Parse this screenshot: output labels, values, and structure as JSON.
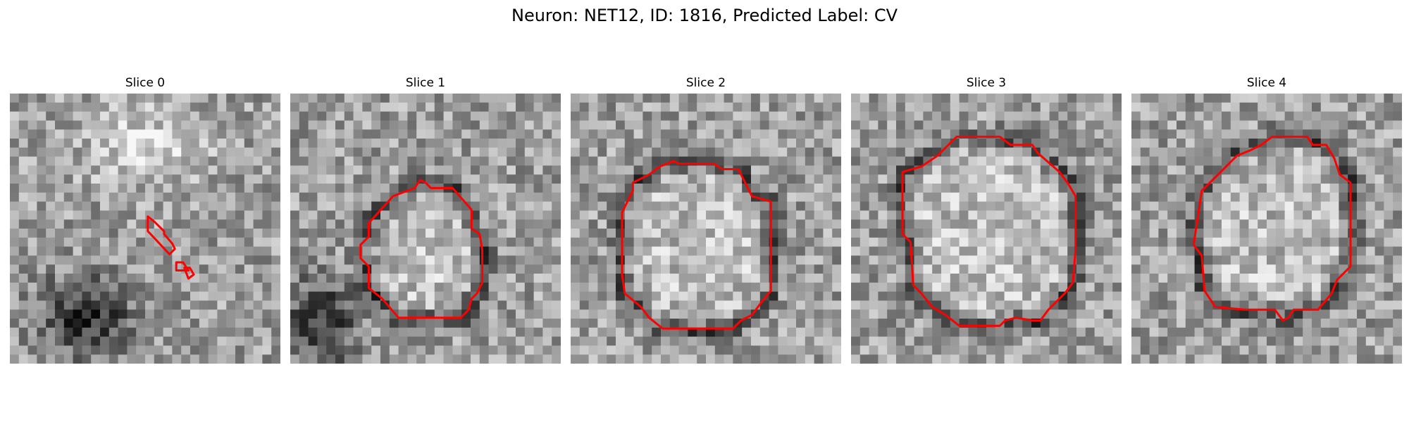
{
  "title": "Neuron: NET12, ID: 1816, Predicted Label: CV",
  "outline_color": "#ff0000",
  "panels": [
    {
      "label": "Slice 0",
      "content": "grayscale EM texture with small red contour",
      "contours": [
        [
          [
            0.51,
            0.455
          ],
          [
            0.535,
            0.475
          ],
          [
            0.57,
            0.51
          ],
          [
            0.57,
            0.52
          ],
          [
            0.6,
            0.555
          ],
          [
            0.61,
            0.575
          ],
          [
            0.59,
            0.595
          ],
          [
            0.52,
            0.52
          ],
          [
            0.51,
            0.51
          ]
        ],
        [
          [
            0.615,
            0.625
          ],
          [
            0.64,
            0.625
          ],
          [
            0.66,
            0.655
          ],
          [
            0.615,
            0.655
          ]
        ],
        [
          [
            0.645,
            0.645
          ],
          [
            0.665,
            0.645
          ],
          [
            0.68,
            0.67
          ],
          [
            0.66,
            0.685
          ]
        ]
      ]
    },
    {
      "label": "Slice 1",
      "content": "grayscale EM texture with red membrane contour",
      "contours": [
        [
          [
            0.29,
            0.48
          ],
          [
            0.38,
            0.38
          ],
          [
            0.46,
            0.35
          ],
          [
            0.48,
            0.32
          ],
          [
            0.5,
            0.33
          ],
          [
            0.52,
            0.35
          ],
          [
            0.6,
            0.35
          ],
          [
            0.67,
            0.43
          ],
          [
            0.67,
            0.5
          ],
          [
            0.7,
            0.52
          ],
          [
            0.71,
            0.58
          ],
          [
            0.71,
            0.7
          ],
          [
            0.69,
            0.74
          ],
          [
            0.67,
            0.76
          ],
          [
            0.66,
            0.8
          ],
          [
            0.63,
            0.83
          ],
          [
            0.4,
            0.83
          ],
          [
            0.34,
            0.76
          ],
          [
            0.29,
            0.72
          ],
          [
            0.29,
            0.64
          ],
          [
            0.26,
            0.61
          ],
          [
            0.26,
            0.56
          ],
          [
            0.29,
            0.53
          ]
        ]
      ]
    },
    {
      "label": "Slice 2",
      "content": "grayscale EM texture with round red contour",
      "contours": [
        [
          [
            0.23,
            0.33
          ],
          [
            0.29,
            0.3
          ],
          [
            0.33,
            0.27
          ],
          [
            0.38,
            0.25
          ],
          [
            0.4,
            0.26
          ],
          [
            0.45,
            0.26
          ],
          [
            0.53,
            0.26
          ],
          [
            0.56,
            0.28
          ],
          [
            0.62,
            0.28
          ],
          [
            0.67,
            0.38
          ],
          [
            0.74,
            0.4
          ],
          [
            0.74,
            0.73
          ],
          [
            0.7,
            0.78
          ],
          [
            0.67,
            0.82
          ],
          [
            0.63,
            0.84
          ],
          [
            0.6,
            0.87
          ],
          [
            0.34,
            0.87
          ],
          [
            0.29,
            0.83
          ],
          [
            0.26,
            0.79
          ],
          [
            0.2,
            0.74
          ],
          [
            0.19,
            0.67
          ],
          [
            0.19,
            0.44
          ],
          [
            0.21,
            0.4
          ],
          [
            0.23,
            0.36
          ]
        ]
      ]
    },
    {
      "label": "Slice 3",
      "content": "grayscale EM texture with round red contour",
      "contours": [
        [
          [
            0.19,
            0.29
          ],
          [
            0.26,
            0.27
          ],
          [
            0.32,
            0.23
          ],
          [
            0.36,
            0.19
          ],
          [
            0.39,
            0.16
          ],
          [
            0.55,
            0.16
          ],
          [
            0.59,
            0.19
          ],
          [
            0.67,
            0.19
          ],
          [
            0.69,
            0.22
          ],
          [
            0.77,
            0.29
          ],
          [
            0.8,
            0.33
          ],
          [
            0.83,
            0.38
          ],
          [
            0.83,
            0.58
          ],
          [
            0.82,
            0.7
          ],
          [
            0.79,
            0.74
          ],
          [
            0.76,
            0.77
          ],
          [
            0.73,
            0.8
          ],
          [
            0.7,
            0.84
          ],
          [
            0.67,
            0.84
          ],
          [
            0.61,
            0.83
          ],
          [
            0.57,
            0.84
          ],
          [
            0.55,
            0.86
          ],
          [
            0.48,
            0.86
          ],
          [
            0.4,
            0.86
          ],
          [
            0.35,
            0.82
          ],
          [
            0.3,
            0.79
          ],
          [
            0.26,
            0.74
          ],
          [
            0.23,
            0.71
          ],
          [
            0.22,
            0.55
          ],
          [
            0.19,
            0.52
          ]
        ]
      ]
    },
    {
      "label": "Slice 4",
      "content": "grayscale EM texture with octagonal red contour",
      "contours": [
        [
          [
            0.26,
            0.36
          ],
          [
            0.33,
            0.29
          ],
          [
            0.39,
            0.23
          ],
          [
            0.44,
            0.21
          ],
          [
            0.48,
            0.19
          ],
          [
            0.52,
            0.16
          ],
          [
            0.57,
            0.16
          ],
          [
            0.65,
            0.16
          ],
          [
            0.67,
            0.19
          ],
          [
            0.72,
            0.19
          ],
          [
            0.75,
            0.24
          ],
          [
            0.77,
            0.3
          ],
          [
            0.81,
            0.33
          ],
          [
            0.81,
            0.64
          ],
          [
            0.76,
            0.69
          ],
          [
            0.74,
            0.74
          ],
          [
            0.69,
            0.8
          ],
          [
            0.6,
            0.8
          ],
          [
            0.58,
            0.83
          ],
          [
            0.56,
            0.84
          ],
          [
            0.53,
            0.8
          ],
          [
            0.42,
            0.8
          ],
          [
            0.31,
            0.79
          ],
          [
            0.27,
            0.73
          ],
          [
            0.26,
            0.6
          ],
          [
            0.23,
            0.56
          ]
        ]
      ]
    }
  ]
}
